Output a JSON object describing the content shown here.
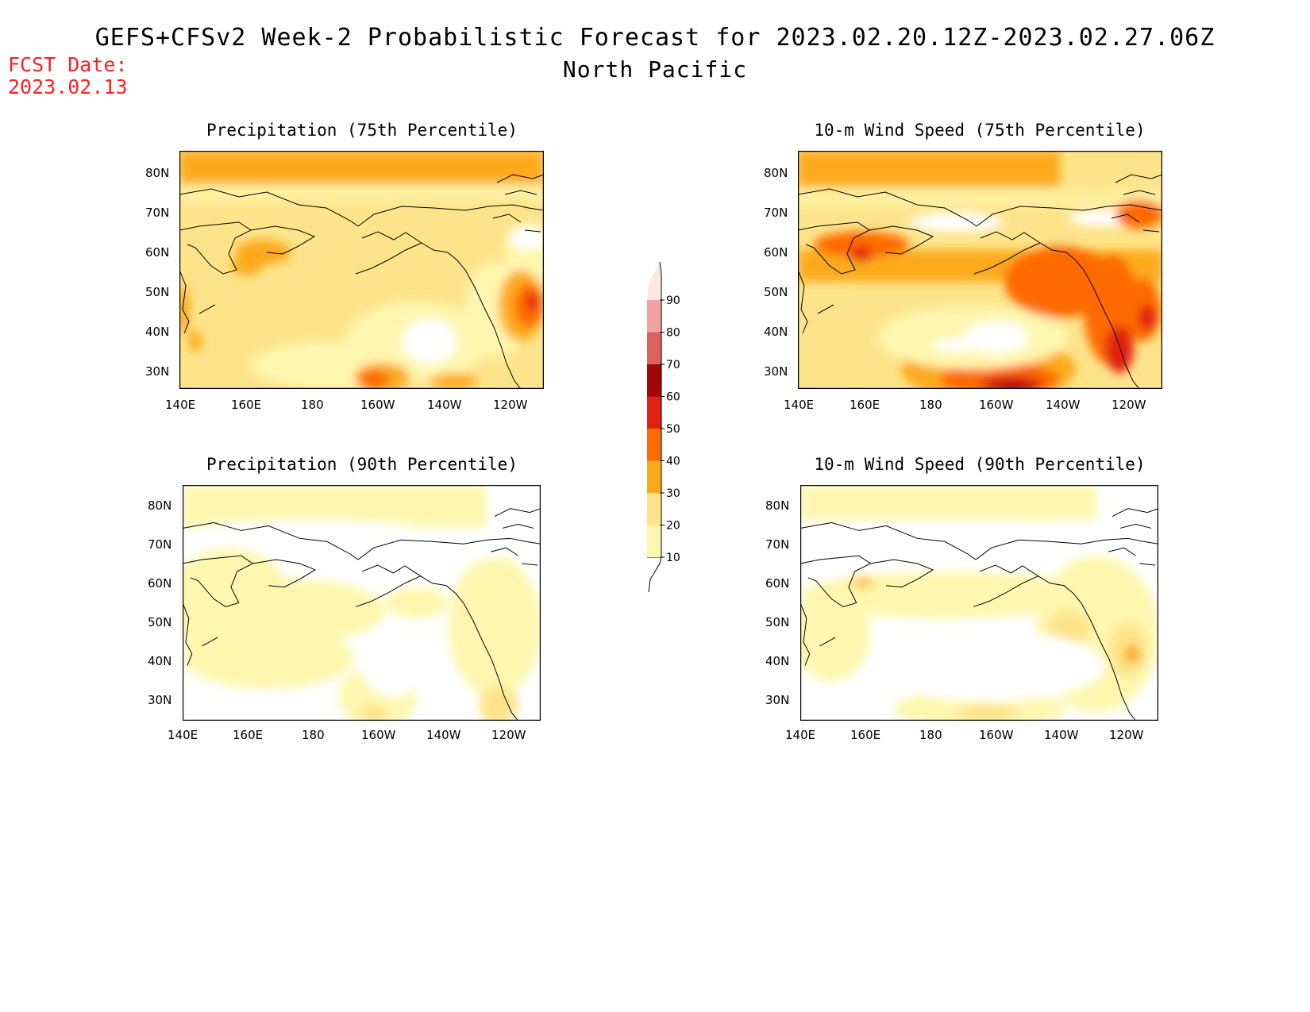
{
  "header": {
    "title_line1": "GEFS+CFSv2 Week-2 Probabilistic Forecast for 2023.02.20.12Z-2023.02.27.06Z",
    "title_line2": "North Pacific",
    "fcst_date_label": "FCST Date:",
    "fcst_date_value": "2023.02.13"
  },
  "panels": [
    {
      "id": "precip-75",
      "title": "Precipitation (75th Percentile)",
      "lat_labels": [
        "80N",
        "70N",
        "60N",
        "50N",
        "40N",
        "30N"
      ],
      "lon_labels": [
        "140E",
        "160E",
        "180",
        "160W",
        "140W",
        "120W"
      ]
    },
    {
      "id": "wind-75",
      "title": "10-m Wind Speed (75th Percentile)",
      "lat_labels": [
        "80N",
        "70N",
        "60N",
        "50N",
        "40N",
        "30N"
      ],
      "lon_labels": [
        "140E",
        "160E",
        "180",
        "160W",
        "140W",
        "120W"
      ]
    },
    {
      "id": "precip-90",
      "title": "Precipitation (90th Percentile)",
      "lat_labels": [
        "80N",
        "70N",
        "60N",
        "50N",
        "40N",
        "30N"
      ],
      "lon_labels": [
        "140E",
        "160E",
        "180",
        "160W",
        "140W",
        "120W"
      ]
    },
    {
      "id": "wind-90",
      "title": "10-m Wind Speed (90th Percentile)",
      "lat_labels": [
        "80N",
        "70N",
        "60N",
        "50N",
        "40N",
        "30N"
      ],
      "lon_labels": [
        "140E",
        "160E",
        "180",
        "160W",
        "140W",
        "120W"
      ]
    }
  ],
  "colorbar": {
    "labels": [
      "10",
      "20",
      "30",
      "40",
      "50",
      "60",
      "70",
      "80",
      "90"
    ],
    "colors": [
      "#fff7b0",
      "#fde48a",
      "#fcaa1a",
      "#fe6a06",
      "#e02010",
      "#a00808",
      "#dd6262",
      "#f4a2a2",
      "#fde6e6"
    ]
  }
}
